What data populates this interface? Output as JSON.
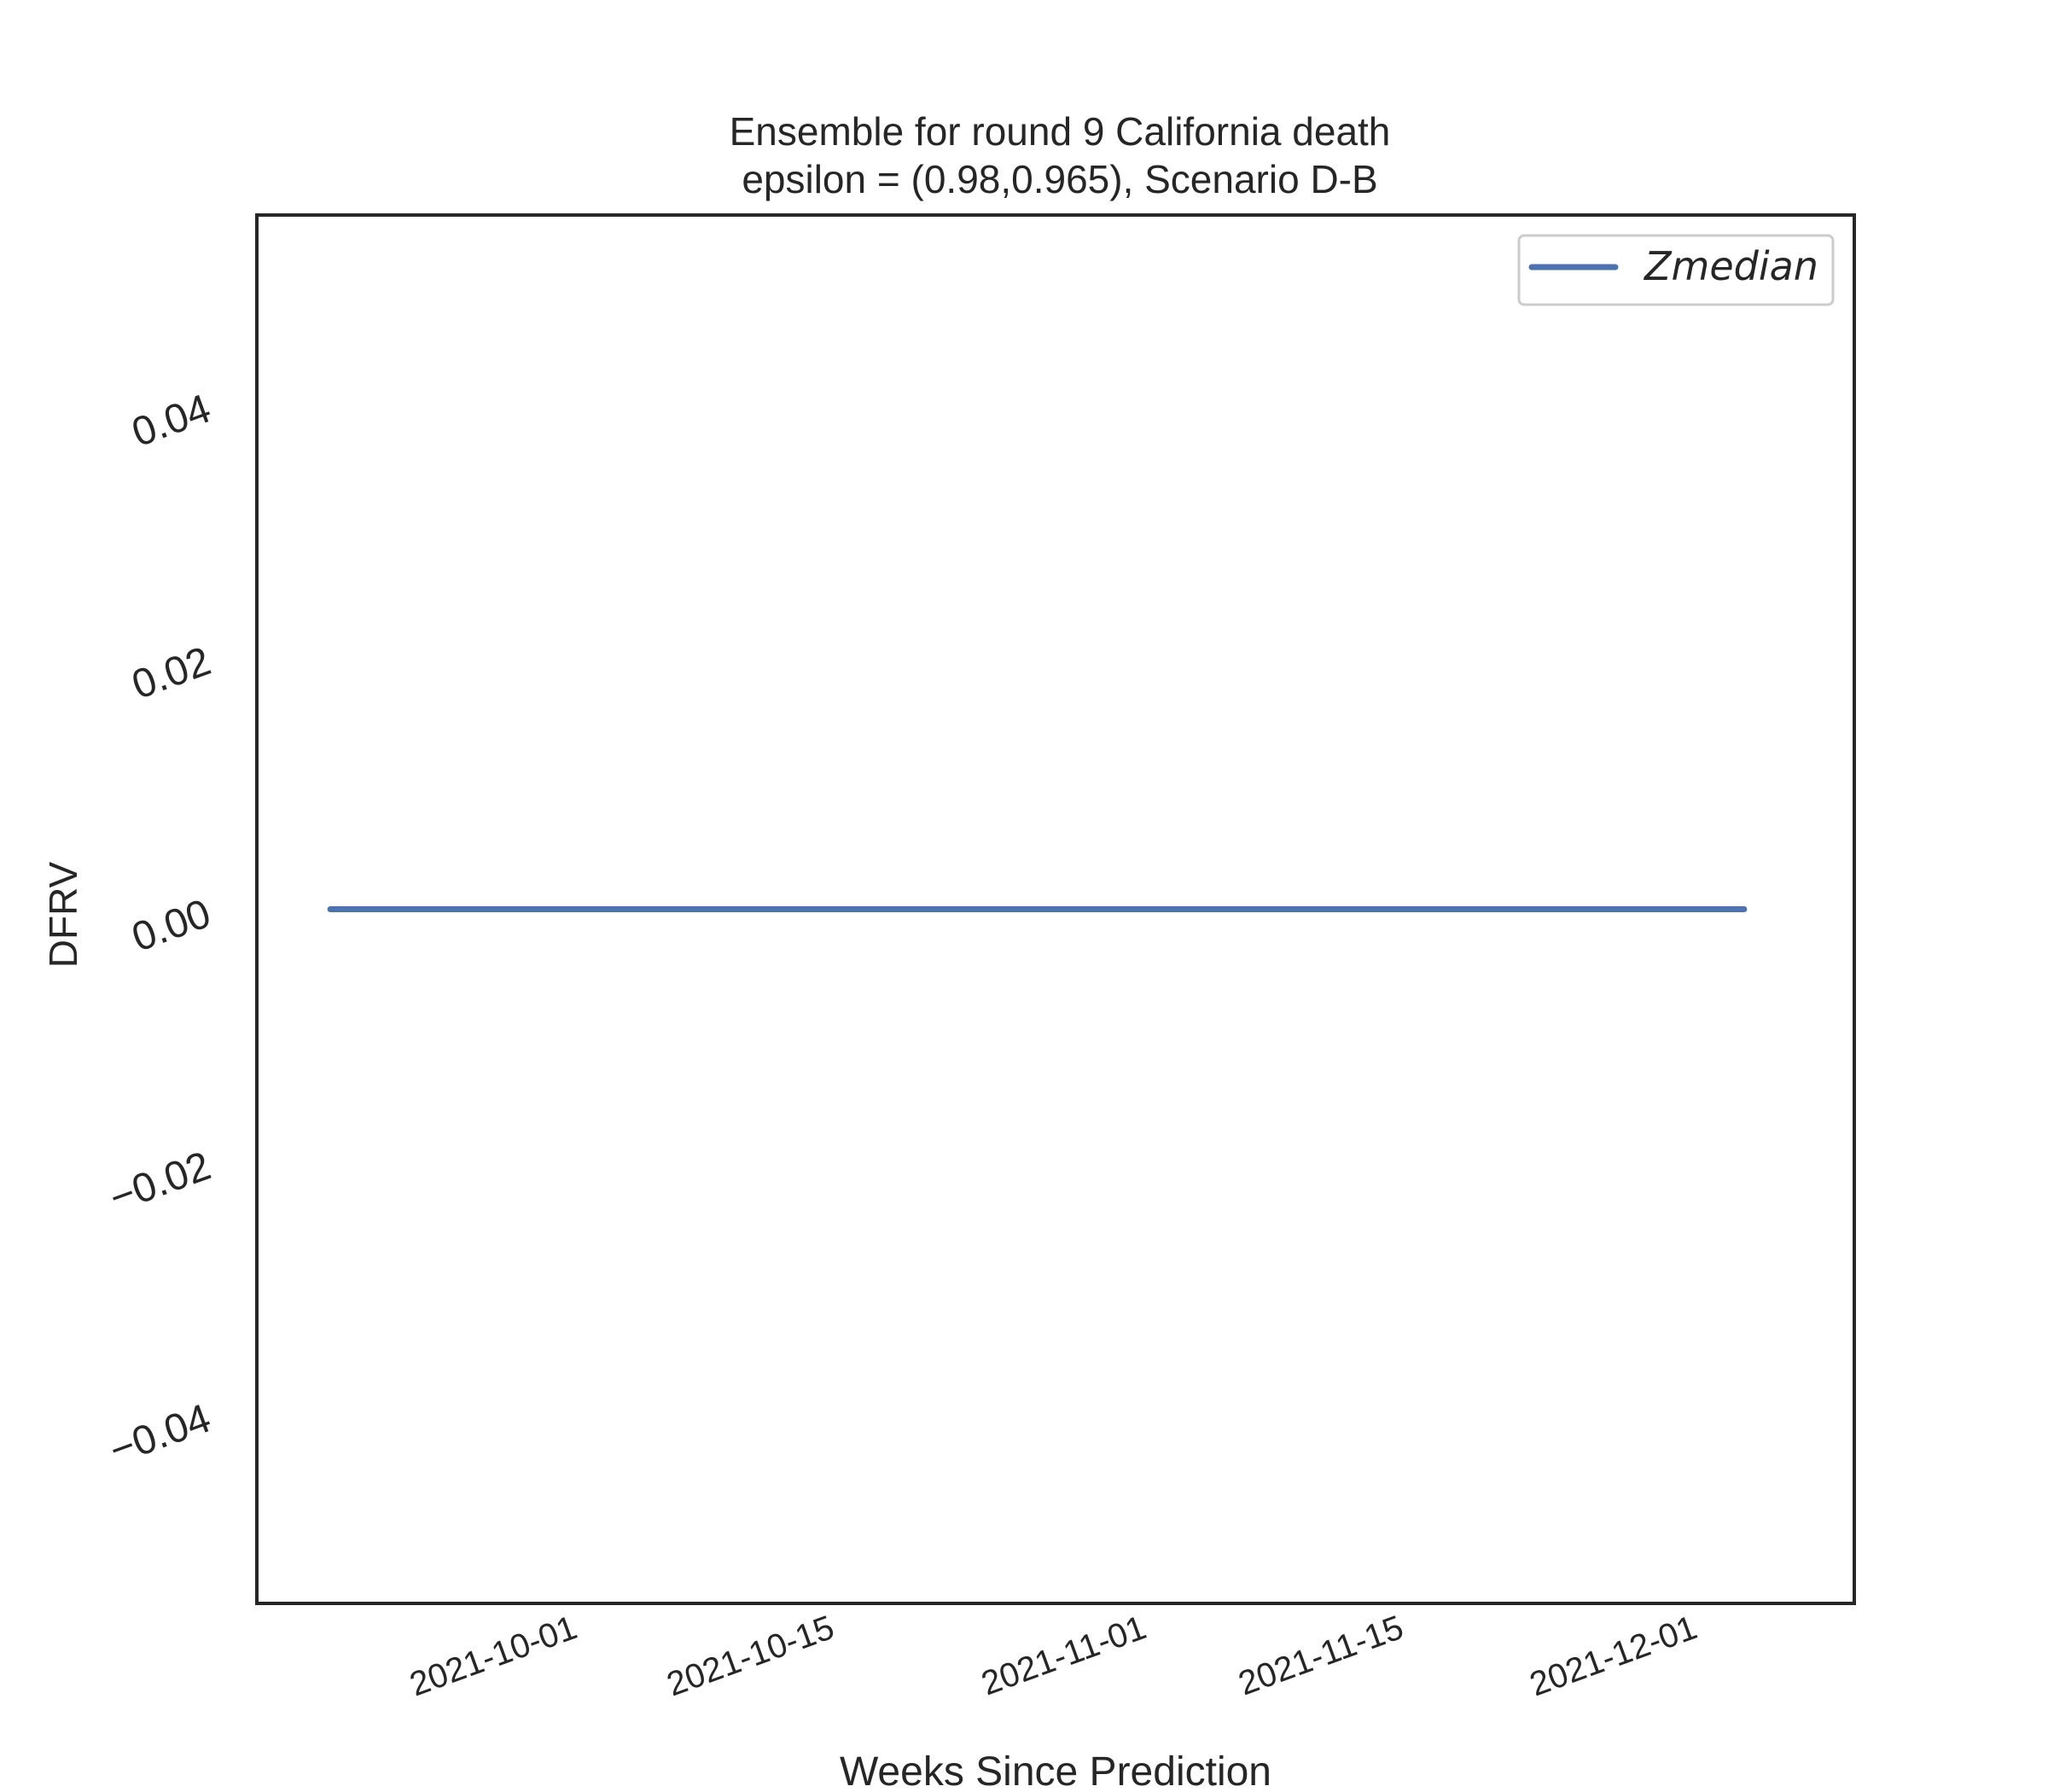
{
  "chart_data": {
    "type": "line",
    "title_line1": "Ensemble for round 9 California  death",
    "title_line2": "epsilon = (0.98,0.965), Scenario D-B",
    "xlabel": "Weeks Since Prediction",
    "ylabel": "DFRV",
    "x_ticks": [
      "2021-10-01",
      "2021-10-15",
      "2021-11-01",
      "2021-11-15",
      "2021-12-01"
    ],
    "y_ticks": [
      -0.04,
      -0.02,
      0.0,
      0.02,
      0.04
    ],
    "y_tick_labels": [
      "−0.04",
      "−0.02",
      "0.00",
      "0.02",
      "0.04"
    ],
    "xlim": [
      "2021-09-14",
      "2021-12-10"
    ],
    "ylim": [
      -0.055,
      0.055
    ],
    "grid": false,
    "legend_position": "top-right",
    "series": [
      {
        "name": "Zmedian",
        "color": "#4c72b0",
        "x": [
          "2021-09-18",
          "2021-09-25",
          "2021-10-02",
          "2021-10-09",
          "2021-10-16",
          "2021-10-23",
          "2021-10-30",
          "2021-11-06",
          "2021-11-13",
          "2021-11-20",
          "2021-11-27",
          "2021-12-04"
        ],
        "y": [
          0,
          0,
          0,
          0,
          0,
          0,
          0,
          0,
          0,
          0,
          0,
          0
        ]
      }
    ]
  }
}
